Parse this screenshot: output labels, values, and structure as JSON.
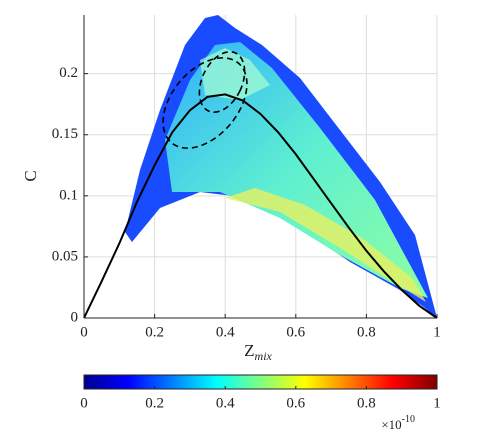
{
  "chart_data": {
    "type": "line",
    "xlabel": "Z",
    "xlabel_subscript": "mix",
    "ylabel": "C",
    "x": [
      0,
      0.05,
      0.1,
      0.15,
      0.2,
      0.25,
      0.3,
      0.35,
      0.4,
      0.45,
      0.5,
      0.55,
      0.6,
      0.65,
      0.7,
      0.75,
      0.8,
      0.85,
      0.9,
      0.95,
      1
    ],
    "values": [
      0,
      0.03,
      0.061,
      0.095,
      0.125,
      0.152,
      0.17,
      0.181,
      0.183,
      0.178,
      0.167,
      0.152,
      0.134,
      0.114,
      0.094,
      0.074,
      0.055,
      0.038,
      0.023,
      0.01,
      0
    ],
    "color": "#000000",
    "xlim": [
      0,
      1
    ],
    "xticks": [
      0,
      0.2,
      0.4,
      0.6,
      0.8,
      1
    ],
    "ylim": [
      0,
      0.248
    ],
    "yticks": [
      0,
      0.05,
      0.1,
      0.15,
      0.2
    ],
    "grid": true,
    "colorbar": {
      "colormap": "jet",
      "clim": [
        0,
        1
      ],
      "ticks": [
        0,
        0.2,
        0.4,
        0.6,
        0.8,
        1
      ],
      "multiplier": "×10",
      "exponent": "-10"
    }
  }
}
